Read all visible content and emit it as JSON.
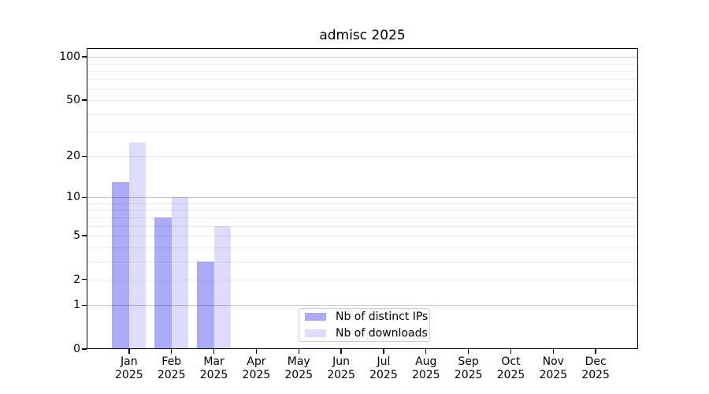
{
  "title": "admisc 2025",
  "chart_data": {
    "type": "bar",
    "title": "admisc 2025",
    "categories": [
      "Jan",
      "Feb",
      "Mar",
      "Apr",
      "May",
      "Jun",
      "Jul",
      "Aug",
      "Sep",
      "Oct",
      "Nov",
      "Dec"
    ],
    "year_label": "2025",
    "series": [
      {
        "name": "Nb of distinct IPs",
        "color": "#aaaaf7",
        "values": [
          13,
          7,
          3,
          0,
          0,
          0,
          0,
          0,
          0,
          0,
          0,
          0
        ]
      },
      {
        "name": "Nb of downloads",
        "color": "#dcdcfa",
        "values": [
          25,
          10,
          6,
          0,
          0,
          0,
          0,
          0,
          0,
          0,
          0,
          0
        ]
      }
    ],
    "yscale": "log1p",
    "ylim": [
      0,
      115
    ],
    "yticks": [
      0,
      1,
      2,
      5,
      10,
      20,
      50,
      100
    ],
    "major_gridlines": [
      1,
      10,
      100
    ],
    "minor_gridlines": [
      2,
      3,
      4,
      5,
      6,
      7,
      8,
      9,
      20,
      30,
      40,
      50,
      60,
      70,
      80,
      90
    ],
    "grid_major_color": "rgba(0,0,0,0.22)",
    "grid_minor_color": "rgba(0,0,0,0.07)",
    "legend_position": "lower center",
    "grid": true
  }
}
